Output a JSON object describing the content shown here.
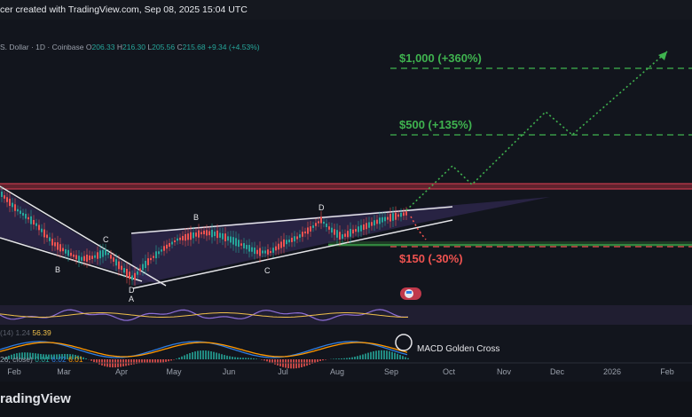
{
  "header": {
    "attribution": "cer created with TradingView.com, Sep 08, 2025 15:04 UTC"
  },
  "symbol": {
    "name": "S. Dollar · 1D · Coinbase",
    "open_label": "O",
    "open": "206.33",
    "high_label": "H",
    "high": "216.30",
    "low_label": "L",
    "low": "205.56",
    "close_label": "C",
    "close": "215.68",
    "change": "+9.34 (+4.53%)"
  },
  "targets": {
    "t1000": "$1,000 (+360%)",
    "t500": "$500 (+135%)",
    "t150": "$150 (-30%)"
  },
  "pattern_labels": {
    "b_left": "B",
    "c_left": "C",
    "d_left": "D",
    "a_left": "A",
    "b_right": "B",
    "c_right": "C",
    "d_right": "D"
  },
  "rsi": {
    "label": "(14) 1.24",
    "value": "56.39"
  },
  "macd": {
    "label": "26, close)",
    "v1": "0.01",
    "v2": "6.02",
    "v3": "6.01",
    "annotation": "MACD Golden Cross"
  },
  "xaxis": {
    "months": [
      "Feb",
      "Mar",
      "Apr",
      "May",
      "Jun",
      "Jul",
      "Aug",
      "Sep",
      "Oct",
      "Nov",
      "Dec",
      "2026",
      "Feb"
    ]
  },
  "footer": {
    "brand": "radingView"
  },
  "colors": {
    "bg": "#12151d",
    "green": "#3fb34f",
    "red": "#ef5350",
    "white_line": "#e6e6ea",
    "purple_fill": "#3b2f63",
    "rsi_line": "#8e6fd8",
    "macd_blue": "#2f7de1",
    "macd_orange": "#ff9800"
  }
}
